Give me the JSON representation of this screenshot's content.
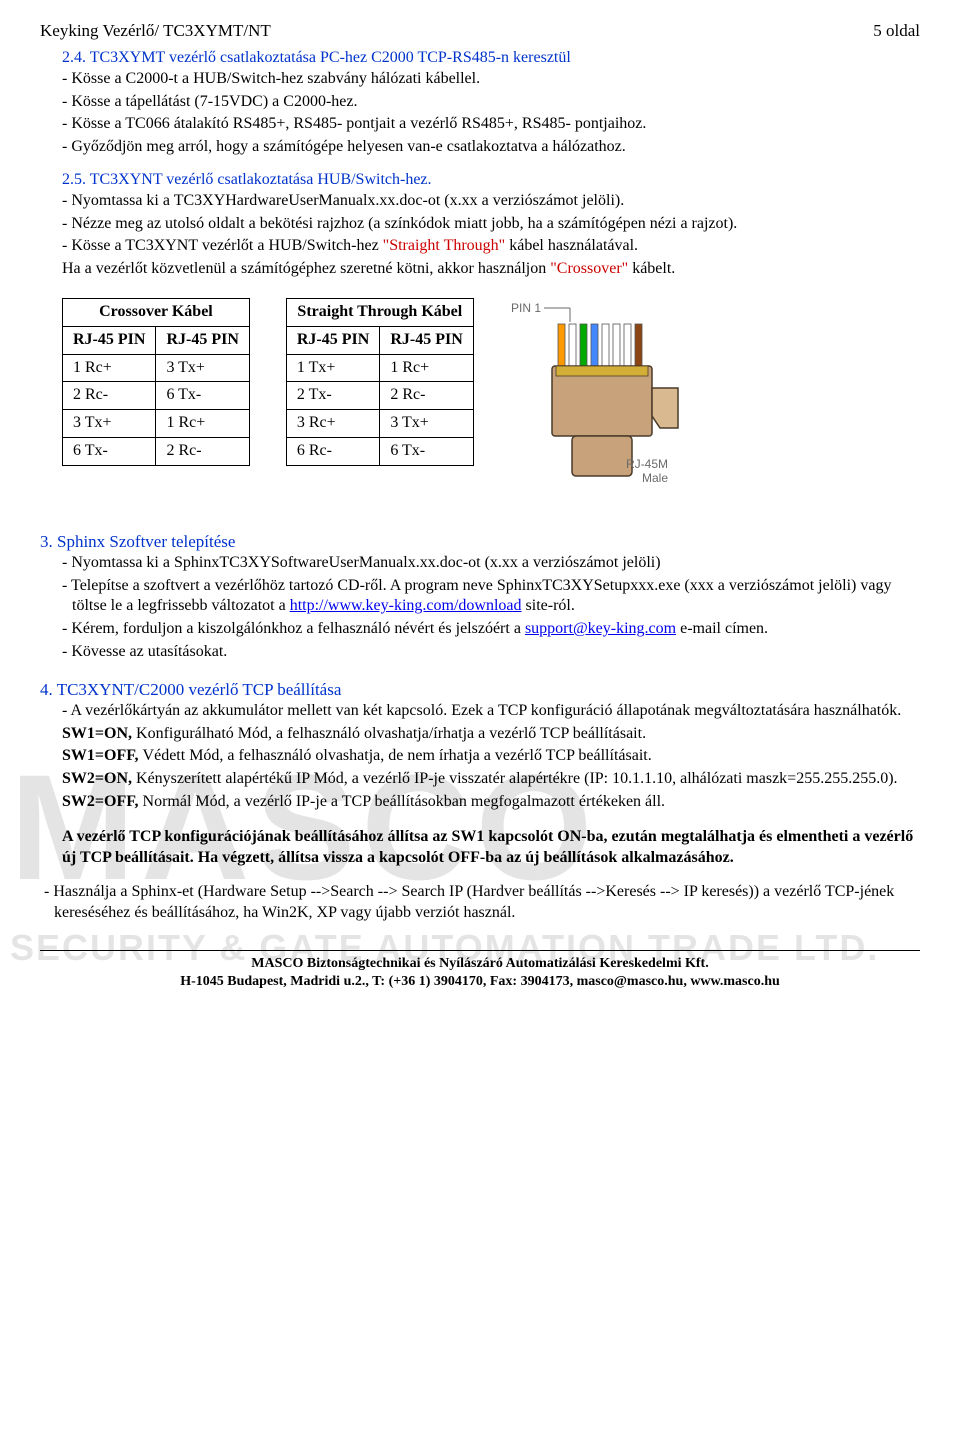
{
  "header": {
    "left": "Keyking Vezérlő/ TC3XYMT/NT",
    "right": "5 oldal"
  },
  "s24": {
    "title": "2.4. TC3XYMT vezérlő csatlakoztatása PC-hez C2000 TCP-RS485-n keresztül",
    "l1": "- Kösse a C2000-t a HUB/Switch-hez szabvány hálózati kábellel.",
    "l2": "- Kösse a tápellátást (7-15VDC) a C2000-hez.",
    "l3": "- Kösse a TC066 átalakító RS485+, RS485- pontjait a vezérlő RS485+, RS485- pontjaihoz.",
    "l4": "- Győződjön meg arról, hogy a számítógépe helyesen van-e csatlakoztatva a hálózathoz."
  },
  "s25": {
    "title": "2.5. TC3XYNT vezérlő csatlakoztatása HUB/Switch-hez.",
    "l1": "- Nyomtassa ki a TC3XYHardwareUserManualx.xx.doc-ot (x.xx a verziószámot jelöli).",
    "l2": "- Nézze meg az utolsó oldalt a bekötési rajzhoz (a színkódok miatt jobb, ha a számítógépen nézi a rajzot).",
    "l3a": "- Kösse a TC3XYNT vezérlőt a HUB/Switch-hez ",
    "l3red": "\"Straight Through\"",
    "l3b": " kábel használatával.",
    "l4a": "Ha a vezérlőt közvetlenül a számítógéphez szeretné kötni, akkor használjon ",
    "l4red": "\"Crossover\"",
    "l4b": " kábelt."
  },
  "tables": {
    "crossover": {
      "title": "Crossover Kábel",
      "col1": "RJ-45 PIN",
      "col2": "RJ-45 PIN",
      "rows": [
        [
          "1 Rc+",
          "3 Tx+"
        ],
        [
          "2 Rc-",
          "6 Tx-"
        ],
        [
          "3 Tx+",
          "1 Rc+"
        ],
        [
          "6 Tx-",
          "2 Rc-"
        ]
      ]
    },
    "straight": {
      "title": "Straight Through Kábel",
      "col1": "RJ-45 PIN",
      "col2": "RJ-45 PIN",
      "rows": [
        [
          "1 Tx+",
          "1 Rc+"
        ],
        [
          "2 Tx-",
          "2 Rc-"
        ],
        [
          "3 Rc+",
          "3 Tx+"
        ],
        [
          "6 Rc-",
          "6 Tx-"
        ]
      ]
    }
  },
  "rj45": {
    "pin1": "PIN 1",
    "label1": "RJ-45M",
    "label2": "Male",
    "wire_colors": [
      "#ff9900",
      "#ffffff",
      "#00aa00",
      "#4488ff",
      "#ffffff",
      "#ffffff",
      "#ffffff",
      "#8b4513"
    ],
    "body_color": "#c8a27a",
    "clip_color": "#d9b98f"
  },
  "s3": {
    "title": "3. Sphinx Szoftver telepítése",
    "l1": "- Nyomtassa ki a SphinxTC3XYSoftwareUserManualx.xx.doc-ot (x.xx a verziószámot jelöli)",
    "l2a": "- Telepítse a szoftvert a vezérlőhöz tartozó CD-ről. A program neve SphinxTC3XYSetupxxx.exe (xxx a verziószámot jelöli) vagy töltse le a legfrissebb változatot a ",
    "l2link": "http://www.key-king.com/download",
    "l2b": " site-ról.",
    "l3a": "- Kérem, forduljon a kiszolgálónkhoz a felhasználó névért és jelszóért a ",
    "l3link": "support@key-king.com",
    "l3b": " e-mail címen.",
    "l4": "- Kövesse az utasításokat."
  },
  "s4": {
    "title": "4. TC3XYNT/C2000 vezérlő TCP beállítása",
    "l1": "- A vezérlőkártyán az akkumulátor mellett van két kapcsoló. Ezek a TCP konfiguráció állapotának megváltoztatására használhatók.",
    "l2b": "SW1=ON, ",
    "l2r": "Konfigurálható Mód, a felhasználó olvashatja/írhatja a vezérlő TCP beállításait.",
    "l3b": "SW1=OFF, ",
    "l3r": "Védett Mód, a felhasználó olvashatja, de nem írhatja a vezérlő TCP beállításait.",
    "l4b": "SW2=ON, ",
    "l4r": "Kényszerített alapértékű IP Mód, a vezérlő IP-je visszatér alapértékre (IP: 10.1.1.10, alhálózati maszk=255.255.255.0).",
    "l5b": "SW2=OFF, ",
    "l5r": "Normál Mód, a vezérlő IP-je a TCP beállításokban megfogalmazott értékeken áll.",
    "bold": "A vezérlő TCP konfigurációjának beállításához állítsa az SW1 kapcsolót ON-ba, ezután megtalálhatja és elmentheti a vezérlő új TCP beállításait. Ha végzett, állítsa vissza a kapcsolót OFF-ba az új beállítások alkalmazásához.",
    "l6": "- Használja a Sphinx-et (Hardware Setup -->Search --> Search IP (Hardver beállítás -->Keresés --> IP keresés)) a vezérlő TCP-jének kereséséhez és beállításához, ha Win2K, XP vagy újabb verziót használ."
  },
  "footer": {
    "line1": "MASCO Biztonságtechnikai és Nyílászáró Automatizálási Kereskedelmi Kft.",
    "line2": "H-1045 Budapest, Madridi u.2., T: (+36 1) 3904170, Fax: 3904173, masco@masco.hu, www.masco.hu"
  },
  "watermark": {
    "big": "MASCO",
    "small": "SECURITY & GATE AUTOMATION TRADE LTD."
  }
}
